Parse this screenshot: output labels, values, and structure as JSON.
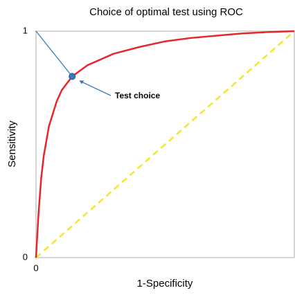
{
  "chart_data": {
    "type": "line",
    "title": "Choice of optimal test using ROC",
    "x_label": "1-Specificity",
    "y_label": "Sensitivity",
    "xlim": [
      0,
      1
    ],
    "ylim": [
      0,
      1
    ],
    "xticks": [
      0
    ],
    "yticks": [
      0,
      1
    ],
    "series": [
      {
        "color": "#e8262a",
        "dash": false,
        "x": [
          0,
          0.01,
          0.02,
          0.03,
          0.05,
          0.08,
          0.1,
          0.14,
          0.2,
          0.3,
          0.4,
          0.5,
          0.6,
          0.7,
          0.8,
          0.9,
          1
        ],
        "values": [
          0,
          0.2,
          0.35,
          0.45,
          0.58,
          0.69,
          0.74,
          0.8,
          0.85,
          0.9,
          0.93,
          0.955,
          0.97,
          0.98,
          0.99,
          0.996,
          1
        ]
      },
      {
        "color": "#f5e62a",
        "dash": true,
        "x": [
          0,
          1
        ],
        "values": [
          0,
          1
        ]
      }
    ],
    "annotation": {
      "text": "Test choice",
      "x": 0.14,
      "y": 0.8,
      "color": "#3a78b8"
    }
  }
}
